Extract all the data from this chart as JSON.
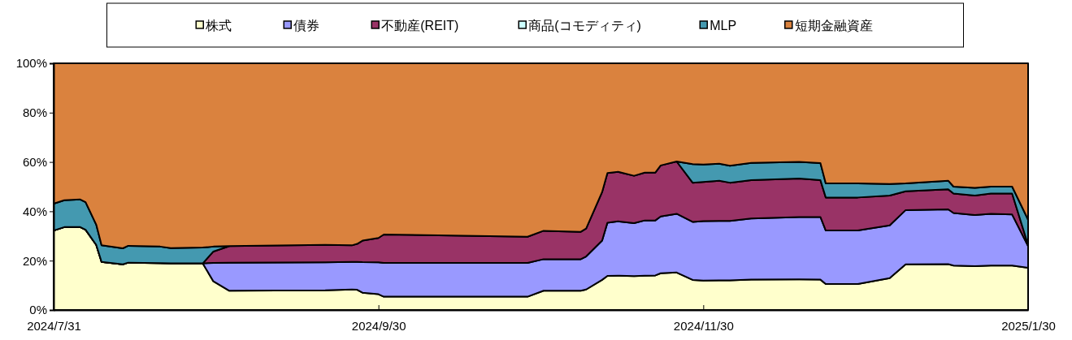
{
  "chart_data": {
    "type": "area",
    "stacked": true,
    "legend": "top",
    "x": [
      "2024-07-31",
      "2024-08-02",
      "2024-08-05",
      "2024-08-06",
      "2024-08-08",
      "2024-08-09",
      "2024-08-13",
      "2024-08-14",
      "2024-08-20",
      "2024-08-22",
      "2024-08-28",
      "2024-08-30",
      "2024-09-02",
      "2024-09-20",
      "2024-09-25",
      "2024-09-26",
      "2024-09-27",
      "2024-09-30",
      "2024-10-01",
      "2024-10-28",
      "2024-10-31",
      "2024-11-07",
      "2024-11-08",
      "2024-11-11",
      "2024-11-12",
      "2024-11-14",
      "2024-11-17",
      "2024-11-19",
      "2024-11-21",
      "2024-11-22",
      "2024-11-25",
      "2024-11-28",
      "2024-11-30",
      "2024-12-03",
      "2024-12-05",
      "2024-12-09",
      "2024-12-18",
      "2024-12-22",
      "2024-12-23",
      "2024-12-29",
      "2025-01-04",
      "2025-01-07",
      "2025-01-15",
      "2025-01-16",
      "2025-01-20",
      "2025-01-23",
      "2025-01-27",
      "2025-01-30"
    ],
    "xlim": [
      "2024-07-31",
      "2025-01-30"
    ],
    "xticks": [
      {
        "value": "2024-07-31",
        "label": "2024/7/31"
      },
      {
        "value": "2024-09-30",
        "label": "2024/9/30"
      },
      {
        "value": "2024-11-30",
        "label": "2024/11/30"
      },
      {
        "value": "2025-01-30",
        "label": "2025/1/30"
      }
    ],
    "ylim": [
      0,
      100
    ],
    "yticks": [
      {
        "value": 0,
        "label": "0%"
      },
      {
        "value": 20,
        "label": "20%"
      },
      {
        "value": 40,
        "label": "40%"
      },
      {
        "value": 60,
        "label": "60%"
      },
      {
        "value": 80,
        "label": "80%"
      },
      {
        "value": 100,
        "label": "100%"
      }
    ],
    "series": [
      {
        "name": "株式",
        "color": "#ffffcc",
        "values": [
          32.2,
          33.6,
          33.6,
          32.5,
          26.4,
          19.5,
          18.5,
          19.2,
          19.0,
          18.9,
          18.9,
          11.6,
          7.8,
          8.0,
          8.3,
          8.2,
          7.0,
          6.4,
          5.4,
          5.4,
          7.8,
          7.8,
          8.3,
          12.2,
          13.8,
          13.9,
          13.7,
          13.9,
          14.0,
          14.9,
          15.2,
          12.2,
          11.9,
          12.0,
          12.0,
          12.3,
          12.4,
          12.3,
          10.5,
          10.5,
          12.9,
          18.5,
          18.6,
          18.0,
          17.8,
          18.0,
          18.0,
          17.1
        ]
      },
      {
        "name": "債券",
        "color": "#9999ff",
        "values": [
          0,
          0,
          0,
          0,
          0,
          0,
          0,
          0,
          0,
          0,
          0,
          7.5,
          11.4,
          11.3,
          11.2,
          11.3,
          12.4,
          12.9,
          13.7,
          13.7,
          12.8,
          12.8,
          13.4,
          15.9,
          21.6,
          22.0,
          21.5,
          22.4,
          22.3,
          23.0,
          23.8,
          23.5,
          24.1,
          24.1,
          24.1,
          24.8,
          25.3,
          25.4,
          21.7,
          21.7,
          21.4,
          22.0,
          22.2,
          21.3,
          20.7,
          21.0,
          20.7,
          8.8
        ]
      },
      {
        "name": "不動産(REIT)",
        "color": "#993366",
        "values": [
          0,
          0,
          0,
          0,
          0,
          0,
          0,
          0,
          0,
          0,
          0,
          4.6,
          6.7,
          7.1,
          6.7,
          7.3,
          8.7,
          9.9,
          11.5,
          10.6,
          11.5,
          11.1,
          11.3,
          19.7,
          20.1,
          20.1,
          19.2,
          19.4,
          19.4,
          20.7,
          21.2,
          15.9,
          15.9,
          16.3,
          15.5,
          15.5,
          15.6,
          14.9,
          13.4,
          13.4,
          12.1,
          7.6,
          8.1,
          7.9,
          7.9,
          8.2,
          8.5,
          0.4
        ]
      },
      {
        "name": "商品(コモディティ)",
        "color": "#ccffff",
        "values": [
          null,
          null,
          null,
          null,
          null,
          null,
          null,
          null,
          null,
          null,
          null,
          null,
          null,
          null,
          null,
          null,
          null,
          null,
          null,
          null,
          null,
          null,
          null,
          null,
          null,
          null,
          null,
          null,
          null,
          null,
          null,
          null,
          null,
          null,
          null,
          null,
          null,
          null,
          null,
          null,
          null,
          null,
          null,
          null,
          null,
          null,
          null,
          null
        ]
      },
      {
        "name": "MLP",
        "color": "#4499b0",
        "values": [
          10.9,
          10.9,
          11.2,
          11.2,
          8.2,
          6.7,
          6.5,
          6.8,
          6.7,
          6.2,
          6.4,
          2.0,
          0,
          null,
          null,
          null,
          null,
          null,
          null,
          null,
          null,
          null,
          null,
          null,
          null,
          null,
          null,
          null,
          null,
          null,
          0,
          7.5,
          7.1,
          6.9,
          6.9,
          7.0,
          6.7,
          6.9,
          5.7,
          5.7,
          4.7,
          3.2,
          3.5,
          2.8,
          3.1,
          2.8,
          2.8,
          10.3
        ]
      },
      {
        "name": "短期金融資産",
        "color": "#da823e",
        "values": [
          56.9,
          55.5,
          55.2,
          56.3,
          65.4,
          73.8,
          75.0,
          74.0,
          74.3,
          74.9,
          74.7,
          74.3,
          74.1,
          73.6,
          73.8,
          73.2,
          71.9,
          70.8,
          69.4,
          70.3,
          67.9,
          68.3,
          67.0,
          52.2,
          44.5,
          44.0,
          45.6,
          44.3,
          44.3,
          41.4,
          39.8,
          40.9,
          41.0,
          40.7,
          41.5,
          40.4,
          40.0,
          40.5,
          48.7,
          48.7,
          48.9,
          48.7,
          47.6,
          50.0,
          50.5,
          50.0,
          50.0,
          63.4
        ]
      }
    ]
  }
}
